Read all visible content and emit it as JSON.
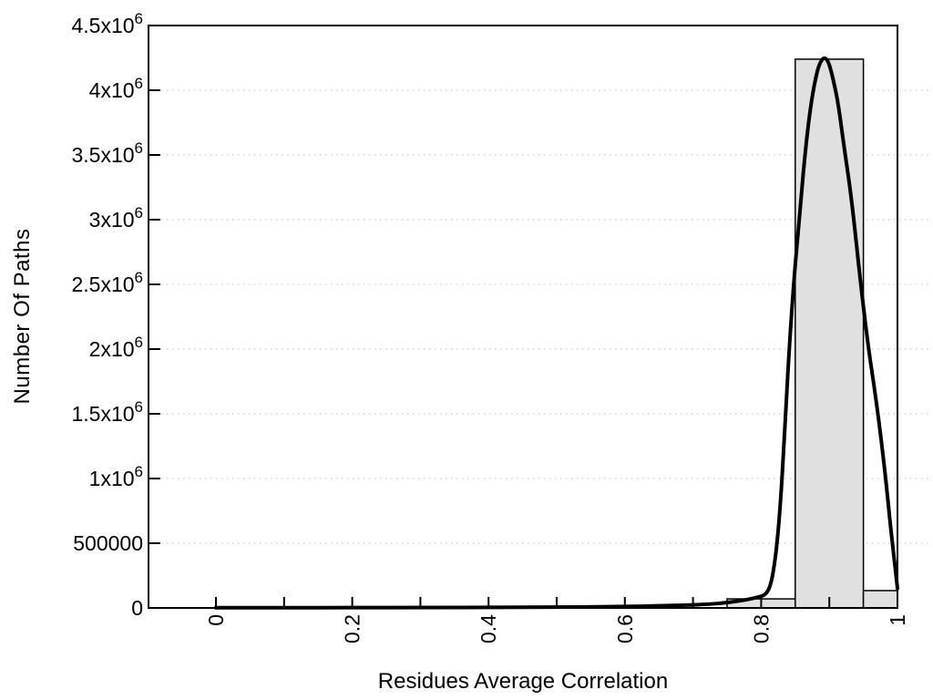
{
  "chart_data": {
    "type": "bar",
    "title": "",
    "xlabel": "Residues Average Correlation",
    "ylabel": "Number Of Paths",
    "xlim": [
      -0.099,
      1.0
    ],
    "ylim": [
      0,
      4500000
    ],
    "grid": "horizontal-dotted",
    "legend": "none",
    "background": "#ffffff",
    "axis_color": "#000000",
    "grid_color": "#b9b9b9",
    "bar_fill": "#e0e0e0",
    "bar_stroke": "#000000",
    "curve_color": "#000000",
    "x_ticks_labeled": [
      {
        "value": 0,
        "label": "0"
      },
      {
        "value": 0.2,
        "label": "0.2"
      },
      {
        "value": 0.4,
        "label": "0.4"
      },
      {
        "value": 0.6,
        "label": "0.6"
      },
      {
        "value": 0.8,
        "label": "0.8"
      },
      {
        "value": 1,
        "label": "1"
      }
    ],
    "x_ticks_minor": [
      0.1,
      0.3,
      0.5,
      0.7,
      0.9
    ],
    "y_ticks": [
      {
        "value": 0,
        "base": "0",
        "exp": null
      },
      {
        "value": 500000,
        "base": "500000",
        "exp": null
      },
      {
        "value": 1000000,
        "base": "1x10",
        "exp": "6"
      },
      {
        "value": 1500000,
        "base": "1.5x10",
        "exp": "6"
      },
      {
        "value": 2000000,
        "base": "2x10",
        "exp": "6"
      },
      {
        "value": 2500000,
        "base": "2.5x10",
        "exp": "6"
      },
      {
        "value": 3000000,
        "base": "3x10",
        "exp": "6"
      },
      {
        "value": 3500000,
        "base": "3.5x10",
        "exp": "6"
      },
      {
        "value": 4000000,
        "base": "4x10",
        "exp": "6"
      },
      {
        "value": 4500000,
        "base": "4.5x10",
        "exp": "6"
      }
    ],
    "bars": [
      {
        "x0": 0.75,
        "x1": 0.85,
        "value": 70000
      },
      {
        "x0": 0.85,
        "x1": 0.95,
        "value": 4240000
      },
      {
        "x0": 0.95,
        "x1": 1.0,
        "value": 134000
      }
    ],
    "curve": {
      "name": "density-fit",
      "points": [
        [
          0.0,
          2000
        ],
        [
          0.1,
          2000
        ],
        [
          0.2,
          2000
        ],
        [
          0.3,
          3000
        ],
        [
          0.4,
          4000
        ],
        [
          0.5,
          6000
        ],
        [
          0.55,
          8000
        ],
        [
          0.6,
          11000
        ],
        [
          0.65,
          16000
        ],
        [
          0.69,
          22000
        ],
        [
          0.72,
          28000
        ],
        [
          0.745,
          38000
        ],
        [
          0.765,
          52000
        ],
        [
          0.78,
          65000
        ],
        [
          0.795,
          82000
        ],
        [
          0.806,
          100000
        ],
        [
          0.813,
          160000
        ],
        [
          0.818,
          280000
        ],
        [
          0.823,
          480000
        ],
        [
          0.828,
          780000
        ],
        [
          0.834,
          1300000
        ],
        [
          0.841,
          2000000
        ],
        [
          0.849,
          2600000
        ],
        [
          0.856,
          3000000
        ],
        [
          0.864,
          3500000
        ],
        [
          0.873,
          3900000
        ],
        [
          0.882,
          4150000
        ],
        [
          0.888,
          4230000
        ],
        [
          0.893,
          4255000
        ],
        [
          0.899,
          4220000
        ],
        [
          0.906,
          4080000
        ],
        [
          0.913,
          3900000
        ],
        [
          0.922,
          3550000
        ],
        [
          0.933,
          3150000
        ],
        [
          0.945,
          2550000
        ],
        [
          0.957,
          2020000
        ],
        [
          0.967,
          1670000
        ],
        [
          0.975,
          1350000
        ],
        [
          0.983,
          990000
        ],
        [
          0.99,
          620000
        ],
        [
          0.995,
          390000
        ],
        [
          1.0,
          150000
        ]
      ]
    }
  }
}
